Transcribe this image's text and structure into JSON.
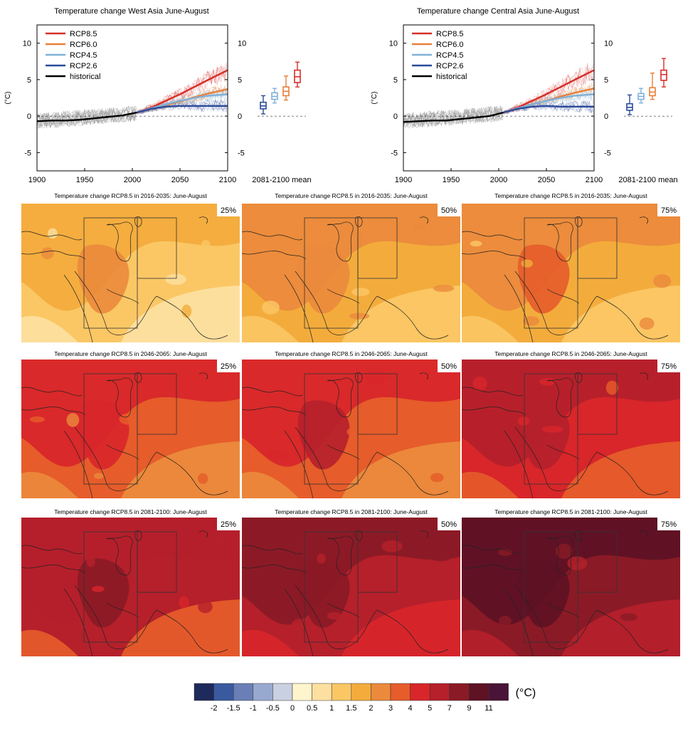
{
  "colors": {
    "rcp85": "#d62f27",
    "rcp60": "#e8803a",
    "rcp45": "#7fb1d9",
    "rcp26": "#2c4a9a",
    "historical": "#000000"
  },
  "chart_data": [
    {
      "type": "line",
      "id": "ts-west",
      "title": "Temperature change West Asia June-August",
      "ylabel": "(°C)",
      "xlim": [
        1900,
        2100
      ],
      "ylim": [
        -7.5,
        12.5
      ],
      "xticks": [
        "1900",
        "1950",
        "2000",
        "2050",
        "2100"
      ],
      "yticks": [
        "-5",
        "0",
        "5",
        "10"
      ],
      "legend": {
        "position": "top-left",
        "entries": [
          "RCP8.5",
          "RCP6.0",
          "RCP4.5",
          "RCP2.6",
          "historical"
        ]
      },
      "series": [
        {
          "name": "historical",
          "color_key": "historical",
          "x": [
            1900,
            1915,
            1930,
            1945,
            1960,
            1975,
            1990,
            2005
          ],
          "y": [
            -0.7,
            -0.6,
            -0.6,
            -0.5,
            -0.3,
            -0.1,
            0.1,
            0.5
          ]
        },
        {
          "name": "RCP8.5",
          "color_key": "rcp85",
          "x": [
            2005,
            2020,
            2035,
            2050,
            2065,
            2080,
            2100
          ],
          "y": [
            0.5,
            1.2,
            2.1,
            3.0,
            4.0,
            5.0,
            6.3
          ]
        },
        {
          "name": "RCP6.0",
          "color_key": "rcp60",
          "x": [
            2005,
            2020,
            2035,
            2050,
            2065,
            2080,
            2100
          ],
          "y": [
            0.5,
            1.0,
            1.5,
            2.0,
            2.6,
            3.1,
            3.7
          ]
        },
        {
          "name": "RCP4.5",
          "color_key": "rcp45",
          "x": [
            2005,
            2020,
            2035,
            2050,
            2065,
            2080,
            2100
          ],
          "y": [
            0.5,
            1.1,
            1.6,
            2.1,
            2.5,
            2.8,
            3.0
          ]
        },
        {
          "name": "RCP2.6",
          "color_key": "rcp26",
          "x": [
            2005,
            2020,
            2035,
            2050,
            2065,
            2080,
            2100
          ],
          "y": [
            0.5,
            1.0,
            1.3,
            1.4,
            1.4,
            1.4,
            1.4
          ]
        }
      ],
      "boxplot": {
        "label": "2081-2100 mean",
        "boxes": [
          {
            "name": "RCP2.6",
            "color_key": "rcp26",
            "min": 0.3,
            "q1": 1.0,
            "median": 1.4,
            "q3": 1.9,
            "max": 2.8
          },
          {
            "name": "RCP4.5",
            "color_key": "rcp45",
            "min": 1.8,
            "q1": 2.3,
            "median": 2.7,
            "q3": 3.2,
            "max": 3.8
          },
          {
            "name": "RCP6.0",
            "color_key": "rcp60",
            "min": 2.2,
            "q1": 2.8,
            "median": 3.4,
            "q3": 4.0,
            "max": 5.5
          },
          {
            "name": "RCP8.5",
            "color_key": "rcp85",
            "min": 4.0,
            "q1": 4.6,
            "median": 5.4,
            "q3": 6.3,
            "max": 7.4
          }
        ]
      }
    },
    {
      "type": "line",
      "id": "ts-central",
      "title": "Temperature change Central Asia June-August",
      "ylabel": "(°C)",
      "xlim": [
        1900,
        2100
      ],
      "ylim": [
        -7.5,
        12.5
      ],
      "xticks": [
        "1900",
        "1950",
        "2000",
        "2050",
        "2100"
      ],
      "yticks": [
        "-5",
        "0",
        "5",
        "10"
      ],
      "legend": {
        "position": "top-left",
        "entries": [
          "RCP8.5",
          "RCP6.0",
          "RCP4.5",
          "RCP2.6",
          "historical"
        ]
      },
      "series": [
        {
          "name": "historical",
          "color_key": "historical",
          "x": [
            1900,
            1915,
            1930,
            1945,
            1960,
            1975,
            1990,
            2005
          ],
          "y": [
            -0.8,
            -0.7,
            -0.6,
            -0.6,
            -0.4,
            -0.2,
            0.0,
            0.5
          ]
        },
        {
          "name": "RCP8.5",
          "color_key": "rcp85",
          "x": [
            2005,
            2020,
            2035,
            2050,
            2065,
            2080,
            2100
          ],
          "y": [
            0.5,
            1.2,
            2.1,
            3.0,
            4.0,
            5.0,
            6.3
          ]
        },
        {
          "name": "RCP6.0",
          "color_key": "rcp60",
          "x": [
            2005,
            2020,
            2035,
            2050,
            2065,
            2080,
            2100
          ],
          "y": [
            0.5,
            1.0,
            1.6,
            2.1,
            2.7,
            3.2,
            3.8
          ]
        },
        {
          "name": "RCP4.5",
          "color_key": "rcp45",
          "x": [
            2005,
            2020,
            2035,
            2050,
            2065,
            2080,
            2100
          ],
          "y": [
            0.5,
            1.1,
            1.6,
            2.1,
            2.5,
            2.8,
            3.0
          ]
        },
        {
          "name": "RCP2.6",
          "color_key": "rcp26",
          "x": [
            2005,
            2020,
            2035,
            2050,
            2065,
            2080,
            2100
          ],
          "y": [
            0.5,
            1.0,
            1.3,
            1.4,
            1.3,
            1.3,
            1.3
          ]
        }
      ],
      "boxplot": {
        "label": "2081-2100 mean",
        "boxes": [
          {
            "name": "RCP2.6",
            "color_key": "rcp26",
            "min": 0.2,
            "q1": 0.8,
            "median": 1.2,
            "q3": 1.7,
            "max": 2.9
          },
          {
            "name": "RCP4.5",
            "color_key": "rcp45",
            "min": 1.8,
            "q1": 2.3,
            "median": 2.7,
            "q3": 3.1,
            "max": 3.8
          },
          {
            "name": "RCP6.0",
            "color_key": "rcp60",
            "min": 2.3,
            "q1": 2.8,
            "median": 3.3,
            "q3": 3.9,
            "max": 5.9
          },
          {
            "name": "RCP8.5",
            "color_key": "rcp85",
            "min": 4.0,
            "q1": 4.9,
            "median": 5.7,
            "q3": 6.3,
            "max": 7.9
          }
        ]
      }
    },
    {
      "type": "heatmap",
      "id": "maps",
      "rows": [
        {
          "title": "Temperature change RCP8.5 in 2016-2035: June-August",
          "percentiles": [
            "25%",
            "50%",
            "75%"
          ],
          "levels": [
            1.2,
            1.5,
            1.8
          ]
        },
        {
          "title": "Temperature change RCP8.5 in 2046-2065: June-August",
          "percentiles": [
            "25%",
            "50%",
            "75%"
          ],
          "levels": [
            3.0,
            3.5,
            4.0
          ]
        },
        {
          "title": "Temperature change RCP8.5 in 2081-2100: June-August",
          "percentiles": [
            "25%",
            "50%",
            "75%"
          ],
          "levels": [
            5.0,
            6.0,
            7.0
          ]
        }
      ],
      "colorbar": {
        "unit": "(°C)",
        "labels": [
          "-2",
          "-1.5",
          "-1",
          "-0.5",
          "0",
          "0.5",
          "1",
          "1.5",
          "2",
          "3",
          "4",
          "5",
          "7",
          "9",
          "11"
        ],
        "bounds": [
          -3,
          -2,
          -1.5,
          -1,
          -0.5,
          0,
          0.5,
          1,
          1.5,
          2,
          3,
          4,
          5,
          7,
          9,
          11,
          13
        ],
        "colors": [
          "#1f2a5c",
          "#3a5aa0",
          "#6a7fb5",
          "#98a9cf",
          "#c9d0e0",
          "#fff5cc",
          "#fde0a0",
          "#fbc765",
          "#f3ac3c",
          "#eb8a3c",
          "#e65c2a",
          "#d8262a",
          "#b5202b",
          "#8a1a26",
          "#5e1224",
          "#4a1438"
        ]
      }
    }
  ]
}
